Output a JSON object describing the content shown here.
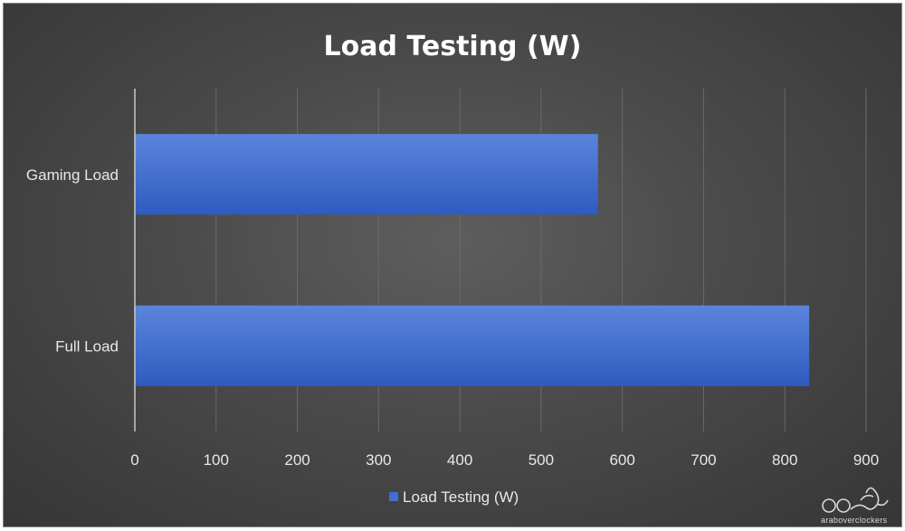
{
  "chart_data": {
    "type": "bar",
    "orientation": "horizontal",
    "title": "Load Testing (W)",
    "categories": [
      "Gaming Load",
      "Full Load"
    ],
    "series": [
      {
        "name": "Load Testing (W)",
        "values": [
          570,
          830
        ]
      }
    ],
    "xlim": [
      0,
      900
    ],
    "xticks": [
      "0",
      "100",
      "200",
      "300",
      "400",
      "500",
      "600",
      "700",
      "800",
      "900"
    ],
    "xlabel": "",
    "ylabel": "",
    "grid": "vertical",
    "legend": "bottom",
    "colors": {
      "bar": "#3f6fd0",
      "bar_light": "#5b85dc",
      "background": "#4a4a4a",
      "grid": "#6a6a6a",
      "text": "#e8e8e8"
    }
  },
  "watermark": {
    "logo": "aoc logo",
    "text": "araboverclockers"
  }
}
